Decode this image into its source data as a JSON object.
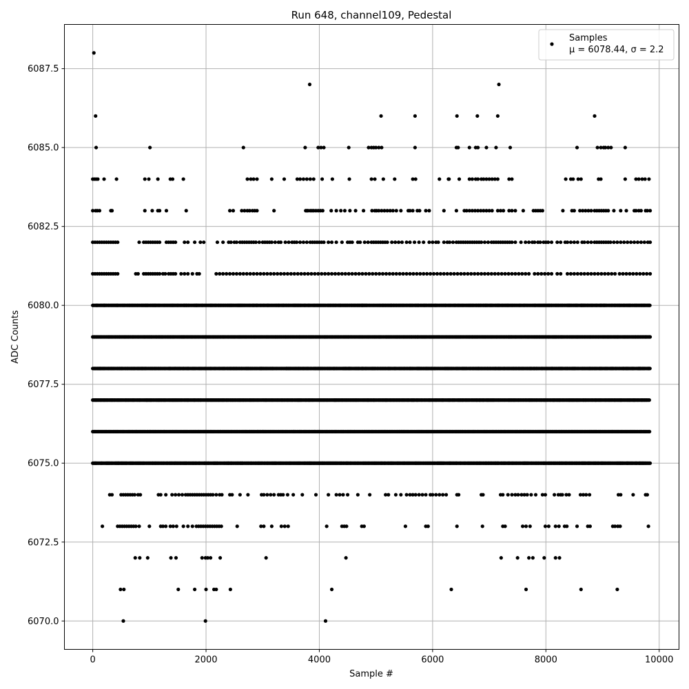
{
  "chart_data": {
    "type": "scatter",
    "title": "Run 648, channel109, Pedestal",
    "xlabel": "Sample #",
    "ylabel": "ADC Counts",
    "xlim": [
      -500,
      10350
    ],
    "ylim": [
      6069.1,
      6088.9
    ],
    "xticks": [
      0,
      2000,
      4000,
      6000,
      8000,
      10000
    ],
    "xtick_labels": [
      "0",
      "2000",
      "4000",
      "6000",
      "8000",
      "10000"
    ],
    "yticks": [
      6070.0,
      6072.5,
      6075.0,
      6077.5,
      6080.0,
      6082.5,
      6085.0,
      6087.5
    ],
    "ytick_labels": [
      "6070.0",
      "6072.5",
      "6075.0",
      "6077.5",
      "6080.0",
      "6082.5",
      "6085.0",
      "6087.5"
    ],
    "grid": true,
    "legend": {
      "position": "top-right",
      "entries": [
        {
          "label": "Samples",
          "sublabel": "μ = 6078.44, σ = 2.2",
          "marker": "dot",
          "color": "#000000"
        }
      ]
    },
    "series": [
      {
        "name": "Samples",
        "color": "#000000",
        "n_samples": 9850,
        "x_range": [
          0,
          9840
        ],
        "levels": [
          {
            "y": 6088,
            "x": [
              20
            ]
          },
          {
            "y": 6087,
            "x": [
              3830,
              7170
            ]
          },
          {
            "y": 6086,
            "x": [
              50,
              5090,
              5690,
              6430,
              6790,
              7150,
              8860
            ]
          },
          {
            "y": 6085,
            "x": [
              60,
              1010,
              2660,
              3750,
              3980,
              4030,
              4080,
              4520,
              4870,
              4920,
              4960,
              5000,
              5050,
              5100,
              5690,
              6420,
              6450,
              6650,
              6760,
              6800,
              6950,
              7120,
              7370,
              8550,
              8910,
              8970,
              9020,
              9050,
              9100,
              9150,
              9400
            ]
          },
          {
            "y": 6084,
            "x": [
              0,
              30,
              60,
              90,
              200,
              420,
              920,
              990,
              1150,
              1370,
              1410,
              1600,
              2730,
              2790,
              2840,
              2900,
              3160,
              3380,
              3610,
              3660,
              3720,
              3780,
              3840,
              3900,
              4050,
              4230,
              4530,
              4920,
              4980,
              5130,
              5330,
              5650,
              5700,
              6120,
              6280,
              6290,
              6470,
              6650,
              6700,
              6760,
              6800,
              6860,
              6900,
              6950,
              7000,
              7050,
              7100,
              7150,
              7350,
              7400,
              8350,
              8440,
              8480,
              8570,
              8620,
              8930,
              8970,
              9400,
              9590,
              9640,
              9700,
              9750,
              9820
            ]
          },
          {
            "y": 6083,
            "x": [
              0,
              50,
              80,
              120,
              320,
              340,
              920,
              1050,
              1150,
              1180,
              1300,
              1650,
              2420,
              2480,
              2630,
              2680,
              2730,
              2770,
              2820,
              2860,
              2900,
              3200,
              3760,
              3780,
              3800,
              3840,
              3870,
              3900,
              3940,
              3980,
              4020,
              4060,
              4210,
              4300,
              4380,
              4450,
              4540,
              4640,
              4780,
              4930,
              4980,
              5010,
              5050,
              5100,
              5150,
              5200,
              5250,
              5300,
              5360,
              5440,
              5570,
              5600,
              5650,
              5730,
              5770,
              5880,
              5940,
              6200,
              6420,
              6560,
              6600,
              6650,
              6700,
              6750,
              6800,
              6850,
              6900,
              6950,
              7000,
              7050,
              7150,
              7200,
              7250,
              7350,
              7400,
              7460,
              7600,
              7780,
              7820,
              7860,
              7900,
              7940,
              8300,
              8460,
              8500,
              8600,
              8650,
              8700,
              8750,
              8800,
              8860,
              8900,
              8940,
              8980,
              9020,
              9060,
              9100,
              9200,
              9320,
              9420,
              9560,
              9590,
              9640,
              9680,
              9760,
              9790,
              9840
            ]
          },
          {
            "y": 6082,
            "x": [
              0,
              40,
              80,
              120,
              160,
              200,
              240,
              280,
              320,
              360,
              400,
              440,
              820,
              900,
              940,
              980,
              1020,
              1060,
              1100,
              1140,
              1180,
              1300,
              1340,
              1380,
              1420,
              1460,
              1620,
              1680,
              1800,
              1900,
              1960,
              2200,
              2300,
              2400,
              2440,
              2500,
              2540,
              2600,
              2640,
              2680,
              2720,
              2760,
              2800,
              2840,
              2880,
              2940,
              3000,
              3040,
              3080,
              3120,
              3160,
              3220,
              3280,
              3320,
              3400,
              3460,
              3520,
              3560,
              3600,
              3660,
              3720,
              3780,
              3840,
              3880,
              3920,
              3960,
              4000,
              4040,
              4080,
              4160,
              4220,
              4300,
              4400,
              4500,
              4540,
              4580,
              4680,
              4720,
              4800,
              4860,
              4920,
              4960,
              5000,
              5040,
              5080,
              5120,
              5160,
              5200,
              5280,
              5340,
              5400,
              5460,
              5540,
              5600,
              5680,
              5760,
              5840,
              5940,
              6000,
              6060,
              6100,
              6200,
              6260,
              6300,
              6360,
              6420,
              6460,
              6500,
              6540,
              6580,
              6620,
              6660,
              6700,
              6740,
              6780,
              6820,
              6860,
              6920,
              6980,
              7040,
              7080,
              7120,
              7160,
              7200,
              7240,
              7280,
              7320,
              7360,
              7400,
              7460,
              7560,
              7640,
              7700,
              7760,
              7800,
              7860,
              7900,
              7960,
              8000,
              8040,
              8100,
              8200,
              8260,
              8340,
              8380,
              8440,
              8500,
              8560,
              8640,
              8680,
              8740,
              8800,
              8860,
              8900,
              8940,
              8980,
              9020,
              9060,
              9100,
              9140,
              9200,
              9260,
              9320,
              9380,
              9440,
              9500,
              9560,
              9620,
              9680,
              9740,
              9800,
              9840
            ]
          },
          {
            "y": 6081,
            "x": [
              0,
              40,
              80,
              120,
              160,
              200,
              240,
              280,
              320,
              360,
              400,
              440,
              760,
              800,
              900,
              940,
              980,
              1020,
              1060,
              1100,
              1140,
              1180,
              1240,
              1280,
              1340,
              1380,
              1420,
              1460,
              1560,
              1620,
              1680,
              1760,
              1840,
              1880,
              2180,
              2240,
              2300,
              2360,
              2420,
              2480,
              2540,
              2600,
              2660,
              2720,
              2780,
              2840,
              2900,
              2960,
              3020,
              3080,
              3140,
              3200,
              3260,
              3320,
              3380,
              3440,
              3500,
              3560,
              3620,
              3680,
              3740,
              3800,
              3860,
              3920,
              3980,
              4040,
              4100,
              4160,
              4220,
              4280,
              4340,
              4400,
              4460,
              4520,
              4580,
              4640,
              4700,
              4760,
              4820,
              4880,
              4940,
              5000,
              5060,
              5120,
              5180,
              5240,
              5300,
              5360,
              5420,
              5480,
              5540,
              5600,
              5660,
              5720,
              5780,
              5840,
              5900,
              5960,
              6020,
              6080,
              6140,
              6200,
              6260,
              6320,
              6380,
              6440,
              6500,
              6560,
              6620,
              6680,
              6740,
              6800,
              6860,
              6920,
              6980,
              7040,
              7100,
              7160,
              7220,
              7280,
              7340,
              7400,
              7460,
              7520,
              7580,
              7640,
              7700,
              7800,
              7860,
              7920,
              7980,
              8040,
              8100,
              8200,
              8260,
              8380,
              8440,
              8500,
              8560,
              8620,
              8680,
              8740,
              8800,
              8860,
              8920,
              8980,
              9040,
              9100,
              9160,
              9220,
              9300,
              9360,
              9420,
              9480,
              9540,
              9600,
              9660,
              9720,
              9780,
              9840
            ]
          },
          {
            "y": 6080,
            "x": "dense"
          },
          {
            "y": 6079,
            "x": "dense"
          },
          {
            "y": 6078,
            "x": "dense"
          },
          {
            "y": 6077,
            "x": "dense"
          },
          {
            "y": 6076,
            "x": "dense"
          },
          {
            "y": 6075,
            "x": "dense"
          },
          {
            "y": 6074,
            "x": [
              300,
              340,
              500,
              540,
              580,
              620,
              660,
              700,
              740,
              800,
              840,
              1160,
              1200,
              1290,
              1400,
              1460,
              1520,
              1580,
              1640,
              1680,
              1720,
              1760,
              1800,
              1840,
              1880,
              1920,
              1960,
              2000,
              2040,
              2080,
              2120,
              2180,
              2240,
              2280,
              2420,
              2460,
              2600,
              2740,
              2980,
              3020,
              3080,
              3140,
              3200,
              3280,
              3320,
              3360,
              3440,
              3540,
              3700,
              3940,
              4160,
              4300,
              4360,
              4420,
              4500,
              4680,
              4890,
              5170,
              5220,
              5350,
              5440,
              5540,
              5600,
              5650,
              5700,
              5760,
              5820,
              5880,
              5960,
              6000,
              6060,
              6120,
              6180,
              6240,
              6430,
              6460,
              6860,
              6890,
              7200,
              7240,
              7330,
              7400,
              7460,
              7510,
              7570,
              7620,
              7670,
              7740,
              7820,
              7940,
              7990,
              8150,
              8220,
              8260,
              8290,
              8360,
              8410,
              8610,
              8660,
              8710,
              8770,
              9280,
              9320,
              9540,
              9760,
              9790
            ]
          },
          {
            "y": 6073,
            "x": [
              170,
              440,
              480,
              520,
              560,
              600,
              640,
              680,
              720,
              760,
              820,
              1000,
              1200,
              1240,
              1290,
              1370,
              1420,
              1480,
              1600,
              1680,
              1760,
              1830,
              1870,
              1910,
              1950,
              1990,
              2030,
              2070,
              2110,
              2150,
              2190,
              2230,
              2270,
              2550,
              2970,
              3020,
              3160,
              3330,
              3390,
              3450,
              4130,
              4400,
              4440,
              4480,
              4750,
              4790,
              5520,
              5880,
              5920,
              6430,
              6880,
              7240,
              7280,
              7590,
              7650,
              7720,
              7990,
              8050,
              8170,
              8230,
              8330,
              8370,
              8550,
              8740,
              8780,
              9180,
              9220,
              9270,
              9310,
              9810
            ]
          },
          {
            "y": 6072,
            "x": [
              750,
              830,
              970,
              1380,
              1470,
              1930,
              1990,
              2030,
              2080,
              2250,
              3060,
              4470,
              7210,
              7500,
              7700,
              7770,
              7970,
              8170,
              8240
            ]
          },
          {
            "y": 6071,
            "x": [
              490,
              550,
              1510,
              1800,
              2000,
              2140,
              2180,
              2430,
              4220,
              6330,
              7650,
              8620,
              9260
            ]
          },
          {
            "y": 6070,
            "x": [
              540,
              1990,
              4110
            ]
          }
        ]
      }
    ]
  }
}
